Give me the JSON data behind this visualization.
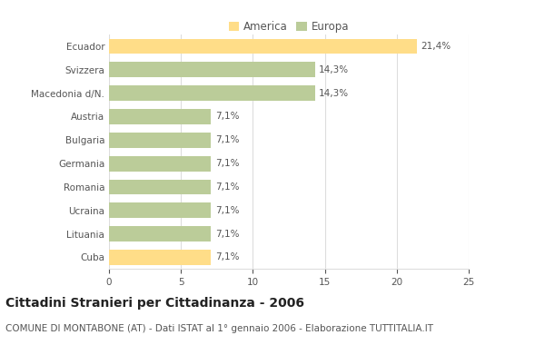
{
  "categories": [
    "Ecuador",
    "Svizzera",
    "Macedonia d/N.",
    "Austria",
    "Bulgaria",
    "Germania",
    "Romania",
    "Ucraina",
    "Lituania",
    "Cuba"
  ],
  "values": [
    21.4,
    14.3,
    14.3,
    7.1,
    7.1,
    7.1,
    7.1,
    7.1,
    7.1,
    7.1
  ],
  "labels": [
    "21,4%",
    "14,3%",
    "14,3%",
    "7,1%",
    "7,1%",
    "7,1%",
    "7,1%",
    "7,1%",
    "7,1%",
    "7,1%"
  ],
  "colors": [
    "#FFDD88",
    "#BBCC99",
    "#BBCC99",
    "#BBCC99",
    "#BBCC99",
    "#BBCC99",
    "#BBCC99",
    "#BBCC99",
    "#BBCC99",
    "#FFDD88"
  ],
  "legend_labels": [
    "America",
    "Europa"
  ],
  "legend_colors": [
    "#FFDD88",
    "#BBCC99"
  ],
  "title": "Cittadini Stranieri per Cittadinanza - 2006",
  "subtitle": "COMUNE DI MONTABONE (AT) - Dati ISTAT al 1° gennaio 2006 - Elaborazione TUTTITALIA.IT",
  "xlim": [
    0,
    25
  ],
  "xticks": [
    0,
    5,
    10,
    15,
    20,
    25
  ],
  "background_color": "#FFFFFF",
  "bar_height": 0.65,
  "grid_color": "#DDDDDD",
  "title_fontsize": 10,
  "subtitle_fontsize": 7.5,
  "label_fontsize": 7.5,
  "tick_fontsize": 7.5,
  "legend_fontsize": 8.5
}
